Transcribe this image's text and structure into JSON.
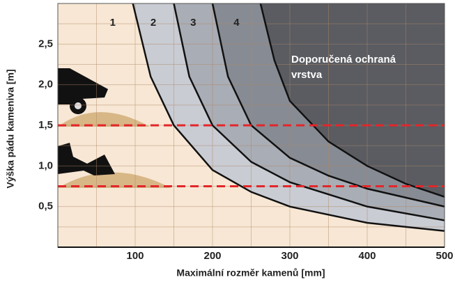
{
  "chart_data": {
    "type": "zones",
    "annotation": [
      "Doporučená ochraná",
      "vrstva"
    ],
    "xlabel": "Maximální rozměr kamenů [mm]",
    "ylabel": "Výška pádu kameniva [m]",
    "xlim": [
      0,
      500
    ],
    "ylim": [
      0,
      3
    ],
    "xticks": [
      100,
      200,
      300,
      400,
      500
    ],
    "yticks": [
      {
        "value": 0.5,
        "label": "0,5"
      },
      {
        "value": 1.0,
        "label": "1,0"
      },
      {
        "value": 1.5,
        "label": "1,5"
      },
      {
        "value": 2.0,
        "label": "2,0"
      },
      {
        "value": 2.5,
        "label": "2,5"
      }
    ],
    "xgrid": [
      50,
      100,
      150,
      200,
      250,
      300,
      350,
      400,
      450
    ],
    "ygrid": [
      0.25,
      0.5,
      0.75,
      1.0,
      1.25,
      1.5,
      1.75,
      2.0,
      2.25,
      2.5,
      2.75
    ],
    "background": "#f7e7d4",
    "reference_lines": [
      1.5,
      0.75
    ],
    "reference_color": "#e3262b",
    "series": [
      {
        "name": "1",
        "color": "#c9ccd3",
        "x": [
          97,
          120,
          150,
          200,
          250,
          300,
          400,
          500
        ],
        "values": [
          3.0,
          2.1,
          1.5,
          0.95,
          0.68,
          0.5,
          0.3,
          0.2
        ]
      },
      {
        "name": "2",
        "color": "#a9adb5",
        "x": [
          150,
          170,
          200,
          250,
          300,
          400,
          500
        ],
        "values": [
          3.0,
          2.1,
          1.5,
          1.05,
          0.8,
          0.5,
          0.33
        ]
      },
      {
        "name": "3",
        "color": "#878b93",
        "x": [
          200,
          220,
          250,
          300,
          350,
          400,
          500
        ],
        "values": [
          3.0,
          2.1,
          1.5,
          1.1,
          0.88,
          0.72,
          0.5
        ]
      },
      {
        "name": "4",
        "color": "#5a5c61",
        "x": [
          262,
          280,
          300,
          350,
          400,
          450,
          500
        ],
        "values": [
          3.0,
          2.3,
          1.8,
          1.3,
          1.0,
          0.78,
          0.62
        ]
      }
    ]
  }
}
